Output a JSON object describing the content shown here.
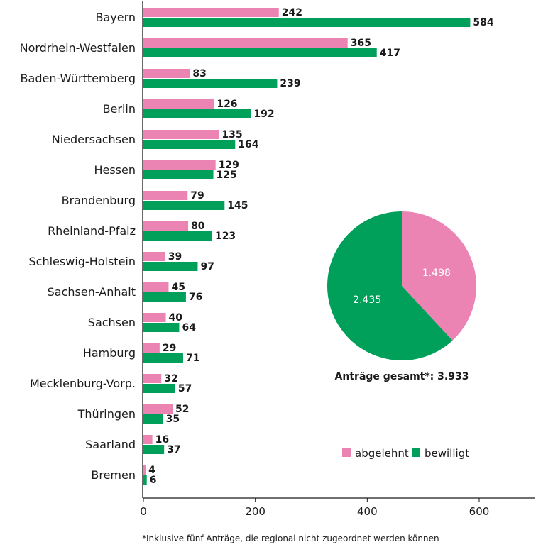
{
  "chart_data": [
    {
      "type": "bar",
      "orientation": "horizontal",
      "categories": [
        "Bayern",
        "Nordrhein-Westfalen",
        "Baden-Württemberg",
        "Berlin",
        "Niedersachsen",
        "Hessen",
        "Brandenburg",
        "Rheinland-Pfalz",
        "Schleswig-Holstein",
        "Sachsen-Anhalt",
        "Sachsen",
        "Hamburg",
        "Mecklenburg-Vorp.",
        "Thüringen",
        "Saarland",
        "Bremen"
      ],
      "series": [
        {
          "name": "abgelehnt",
          "color": "#ec84b3",
          "values": [
            242,
            365,
            83,
            126,
            135,
            129,
            79,
            80,
            39,
            45,
            40,
            29,
            32,
            52,
            16,
            4
          ]
        },
        {
          "name": "bewilligt",
          "color": "#00a05a",
          "values": [
            584,
            417,
            239,
            192,
            164,
            125,
            145,
            123,
            97,
            76,
            64,
            71,
            57,
            35,
            37,
            6
          ]
        }
      ],
      "xlim": [
        0,
        700
      ],
      "xticks": [
        0,
        200,
        400,
        600
      ],
      "grid": false,
      "legend_position": "right",
      "legend": [
        {
          "label": "abgelehnt",
          "color": "#ec84b3"
        },
        {
          "label": "bewilligt",
          "color": "#00a05a"
        }
      ]
    },
    {
      "type": "pie",
      "slices": [
        {
          "name": "abgelehnt",
          "value": 1498,
          "label": "1.498",
          "color": "#ec84b3"
        },
        {
          "name": "bewilligt",
          "value": 2435,
          "label": "2.435",
          "color": "#00a05a"
        }
      ],
      "total_label": "Anträge gesamt*: 3.933"
    }
  ],
  "footnote": "*Inklusive fünf Anträge, die regional nicht zugeordnet werden können"
}
